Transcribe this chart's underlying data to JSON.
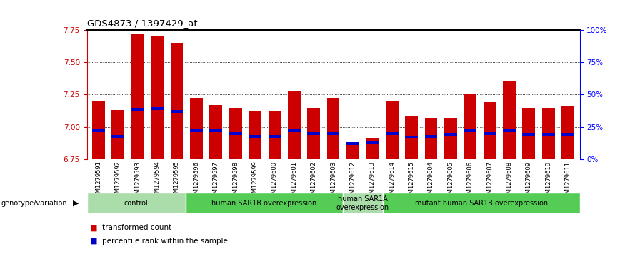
{
  "title": "GDS4873 / 1397429_at",
  "samples": [
    "GSM1279591",
    "GSM1279592",
    "GSM1279593",
    "GSM1279594",
    "GSM1279595",
    "GSM1279596",
    "GSM1279597",
    "GSM1279598",
    "GSM1279599",
    "GSM1279600",
    "GSM1279601",
    "GSM1279602",
    "GSM1279603",
    "GSM1279612",
    "GSM1279613",
    "GSM1279614",
    "GSM1279615",
    "GSM1279604",
    "GSM1279605",
    "GSM1279606",
    "GSM1279607",
    "GSM1279608",
    "GSM1279609",
    "GSM1279610",
    "GSM1279611"
  ],
  "bar_values": [
    7.2,
    7.13,
    7.72,
    7.7,
    7.65,
    7.22,
    7.17,
    7.15,
    7.12,
    7.12,
    7.28,
    7.15,
    7.22,
    6.86,
    6.91,
    7.2,
    7.08,
    7.07,
    7.07,
    7.25,
    7.19,
    7.35,
    7.15,
    7.14,
    7.16
  ],
  "blue_values": [
    6.97,
    6.93,
    7.13,
    7.14,
    7.12,
    6.97,
    6.97,
    6.95,
    6.93,
    6.93,
    6.97,
    6.95,
    6.95,
    6.87,
    6.88,
    6.95,
    6.92,
    6.93,
    6.94,
    6.97,
    6.95,
    6.97,
    6.94,
    6.94,
    6.94
  ],
  "groups": [
    {
      "label": "control",
      "start": 0,
      "end": 5,
      "color": "#aaddaa"
    },
    {
      "label": "human SAR1B overexpression",
      "start": 5,
      "end": 13,
      "color": "#55cc55"
    },
    {
      "label": "human SAR1A\noverexpression",
      "start": 13,
      "end": 15,
      "color": "#aaddaa"
    },
    {
      "label": "mutant human SAR1B overexpression",
      "start": 15,
      "end": 25,
      "color": "#55cc55"
    }
  ],
  "ylim_left": [
    6.75,
    7.75
  ],
  "yticks_left": [
    6.75,
    7.0,
    7.25,
    7.5,
    7.75
  ],
  "ylim_right": [
    0,
    100
  ],
  "yticks_right": [
    0,
    25,
    50,
    75,
    100
  ],
  "bar_color": "#cc0000",
  "blue_color": "#0000cc",
  "bar_width": 0.65,
  "grid_color": "black",
  "bg_color": "#ffffff",
  "genotype_label": "genotype/variation",
  "xtick_bg": "#cccccc"
}
